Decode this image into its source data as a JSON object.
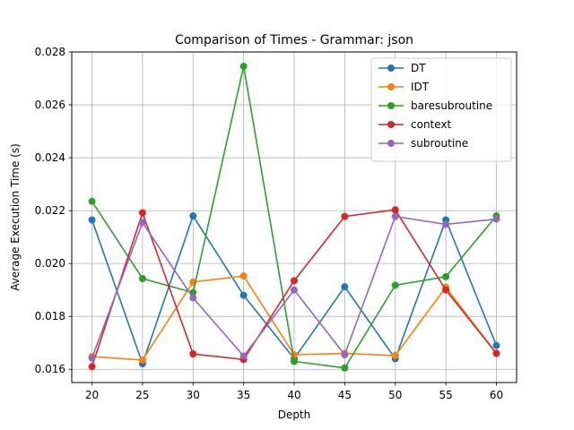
{
  "chart_data": {
    "type": "line",
    "title": "Comparison of Times - Grammar: json",
    "xlabel": "Depth",
    "ylabel": "Average Execution Time (s)",
    "x": [
      20,
      25,
      30,
      35,
      40,
      45,
      50,
      55,
      60
    ],
    "xlim": [
      18,
      62
    ],
    "ylim": [
      0.0155,
      0.028
    ],
    "xticks": [
      20,
      25,
      30,
      35,
      40,
      45,
      50,
      55,
      60
    ],
    "yticks": [
      0.016,
      0.018,
      0.02,
      0.022,
      0.024,
      0.026,
      0.028
    ],
    "ytick_labels": [
      "0.016",
      "0.018",
      "0.020",
      "0.022",
      "0.024",
      "0.026",
      "0.028"
    ],
    "grid": true,
    "legend_position": "top-right",
    "series": [
      {
        "name": "DT",
        "color": "#1f77b4",
        "values": [
          0.02165,
          0.01621,
          0.0218,
          0.0188,
          0.0164,
          0.01912,
          0.0164,
          0.02165,
          0.0169
        ]
      },
      {
        "name": "IDT",
        "color": "#ff7f0e",
        "values": [
          0.01648,
          0.01635,
          0.0193,
          0.01953,
          0.01655,
          0.0166,
          0.01652,
          0.0191,
          0.0166
        ]
      },
      {
        "name": "baresubroutine",
        "color": "#2ca02c",
        "values": [
          0.02235,
          0.01943,
          0.0189,
          0.02746,
          0.0163,
          0.01605,
          0.01918,
          0.0195,
          0.0218
        ]
      },
      {
        "name": "context",
        "color": "#d62728",
        "values": [
          0.0161,
          0.02192,
          0.01658,
          0.01637,
          0.01935,
          0.02178,
          0.02203,
          0.019,
          0.0166
        ]
      },
      {
        "name": "subroutine",
        "color": "#9467bd",
        "values": [
          0.01643,
          0.02155,
          0.0187,
          0.0165,
          0.019,
          0.01655,
          0.02178,
          0.02148,
          0.02168
        ]
      }
    ]
  }
}
